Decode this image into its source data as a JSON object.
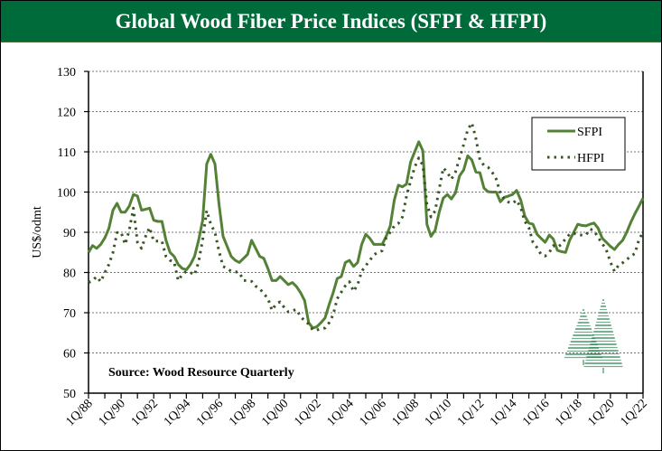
{
  "title": "Global Wood Fiber Price Indices (SFPI & HFPI)",
  "source_note": "Source: Wood Resource Quarterly",
  "colors": {
    "banner": "#006b3a",
    "sfpi": "#538135",
    "hfpi": "#375623",
    "logo": "#1a7a45"
  },
  "logo_icon": "pine-trees-logo",
  "chart_data": {
    "type": "line",
    "title": "Global Wood Fiber Price Indices (SFPI & HFPI)",
    "ylabel": "US$/odmt",
    "xlabel": "",
    "ylim": [
      50,
      130
    ],
    "yticks": [
      50,
      60,
      70,
      80,
      90,
      100,
      110,
      120,
      130
    ],
    "x_start": "1Q/88",
    "x_end": "1Q/22",
    "x_frequency": "quarterly",
    "xtick_labels": [
      "1Q/88",
      "1Q/90",
      "1Q/92",
      "1Q/94",
      "1Q/96",
      "1Q/98",
      "1Q/00",
      "1Q/02",
      "1Q/04",
      "1Q/06",
      "1Q/08",
      "1Q/10",
      "1Q/12",
      "1Q/14",
      "1Q/16",
      "1Q/18",
      "1Q/20",
      "1Q/22"
    ],
    "grid": "horizontal dotted",
    "legend_position": "top-right",
    "series": [
      {
        "name": "SFPI",
        "style": "solid",
        "values": [
          85,
          86.7,
          86,
          87,
          88.6,
          91,
          95.5,
          97.2,
          95,
          95,
          96.5,
          99.4,
          99,
          95.5,
          95.7,
          96,
          93,
          92.7,
          92.7,
          88,
          85,
          84,
          82,
          81,
          80.7,
          82,
          84,
          88,
          93,
          107,
          109.4,
          107,
          97,
          89,
          86.5,
          84,
          83,
          82.5,
          83.5,
          84.5,
          88,
          86,
          84,
          83.5,
          81,
          78,
          78,
          79,
          78,
          77,
          77.5,
          76.5,
          75,
          73,
          67.5,
          66.2,
          66.5,
          67.5,
          68.7,
          72,
          75,
          78.5,
          79,
          82.5,
          83,
          81.5,
          82.5,
          87,
          89.5,
          88.5,
          87,
          87,
          87,
          89,
          91.6,
          98,
          101.7,
          101.3,
          102,
          107.5,
          110,
          112.5,
          110.3,
          92,
          89,
          90.5,
          95,
          98.5,
          99.4,
          98.3,
          99.8,
          104,
          105.5,
          109,
          108,
          105,
          104.8,
          101,
          100.1,
          100,
          100,
          97.6,
          98.7,
          99,
          99.4,
          100.4,
          98,
          94,
          92.3,
          92,
          89.5,
          88.5,
          87.5,
          89.3,
          88.3,
          85.5,
          85.2,
          85,
          88,
          90,
          92,
          91.7,
          91.6,
          92,
          92.3,
          91,
          88.5,
          87.5,
          86.5,
          85.7,
          87,
          88,
          90,
          92.5,
          94.6,
          96.5,
          98.5
        ]
      },
      {
        "name": "HFPI",
        "style": "dotted",
        "values": [
          77.5,
          78,
          79,
          77.7,
          80,
          82,
          85,
          89.9,
          90,
          87,
          90.5,
          96,
          87.5,
          86,
          89,
          91.2,
          87.8,
          87.8,
          87.8,
          84,
          83,
          82.6,
          78,
          79.5,
          80.3,
          80,
          79.4,
          82.6,
          88.2,
          95.4,
          92,
          90,
          85.3,
          81.5,
          81,
          80.3,
          80.2,
          80,
          78,
          78,
          77.8,
          76.6,
          76,
          74.7,
          73.6,
          70.6,
          72.2,
          72.7,
          71.3,
          70.2,
          70.5,
          70.8,
          69,
          68,
          67.2,
          65.7,
          65.7,
          66,
          66.2,
          67.5,
          69.5,
          73.5,
          75.1,
          76.7,
          77.7,
          75.3,
          77,
          80.3,
          81.7,
          83,
          84.4,
          85,
          85.4,
          88.7,
          90,
          91.6,
          92.2,
          93.8,
          99,
          102.8,
          106.2,
          108.5,
          106.6,
          97,
          93.8,
          95.3,
          100.7,
          106,
          104.9,
          103.2,
          105,
          108.4,
          111.8,
          115.5,
          117.2,
          113.4,
          108,
          106.6,
          106.2,
          104.9,
          103.2,
          99.7,
          98.2,
          97.5,
          97.2,
          98,
          96.1,
          92.7,
          91.2,
          87.5,
          86.2,
          84.5,
          84.1,
          85,
          86.7,
          86.3,
          87,
          88.4,
          89.5,
          89.8,
          89.3,
          89.3,
          89.3,
          90.8,
          90.4,
          88.7,
          87.2,
          85.6,
          82.6,
          80.3,
          81.8,
          82.4,
          83.2,
          84.1,
          84.7,
          88.2,
          90
        ]
      }
    ]
  }
}
